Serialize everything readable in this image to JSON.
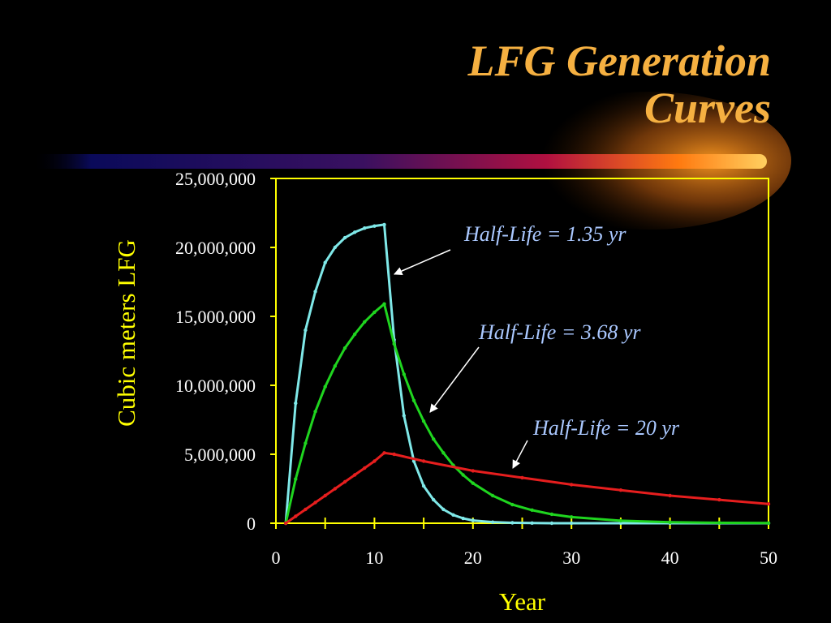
{
  "slide": {
    "title_line1": "LFG Generation",
    "title_line2": "Curves"
  },
  "colors": {
    "background": "#000000",
    "title": "#f5b041",
    "axes": "#ffff00",
    "tick_text": "#ffffff",
    "axis_title": "#ffff00",
    "annotation": "#aac8ff"
  },
  "chart_data": {
    "type": "line",
    "title": "",
    "xlabel": "Year",
    "ylabel": "Cubic meters LFG",
    "xlim": [
      0,
      50
    ],
    "ylim": [
      0,
      25000000
    ],
    "xticks": [
      0,
      10,
      20,
      30,
      40,
      50
    ],
    "xtick_labels": [
      "0",
      "10",
      "20",
      "30",
      "40",
      "50"
    ],
    "yticks": [
      0,
      5000000,
      10000000,
      15000000,
      20000000,
      25000000
    ],
    "ytick_labels": [
      "0",
      "5,000,000",
      "10,000,000",
      "15,000,000",
      "20,000,000",
      "25,000,000"
    ],
    "grid": false,
    "legend": "none",
    "series": [
      {
        "color": "#7fe8e8",
        "x": [
          1,
          2,
          3,
          4,
          5,
          6,
          7,
          8,
          9,
          10,
          11,
          12,
          13,
          14,
          15,
          16,
          17,
          18,
          19,
          20,
          22,
          24,
          26,
          28,
          30,
          35,
          40,
          45,
          50
        ],
        "y": [
          0,
          8700000,
          14000000,
          16800000,
          18900000,
          20000000,
          20700000,
          21100000,
          21400000,
          21550000,
          21650000,
          13300000,
          7800000,
          4500000,
          2700000,
          1700000,
          1000000,
          600000,
          350000,
          200000,
          80000,
          30000,
          10000,
          0,
          0,
          0,
          0,
          0,
          0
        ]
      },
      {
        "color": "#1fd51f",
        "x": [
          1,
          2,
          3,
          4,
          5,
          6,
          7,
          8,
          9,
          10,
          11,
          12,
          13,
          14,
          15,
          16,
          17,
          18,
          19,
          20,
          22,
          24,
          26,
          28,
          30,
          35,
          40,
          45,
          50
        ],
        "y": [
          0,
          3200000,
          5800000,
          8100000,
          9900000,
          11400000,
          12700000,
          13700000,
          14600000,
          15300000,
          15900000,
          13000000,
          10800000,
          8900000,
          7400000,
          6100000,
          5100000,
          4200000,
          3500000,
          2900000,
          2000000,
          1350000,
          950000,
          650000,
          450000,
          180000,
          70000,
          30000,
          10000
        ]
      },
      {
        "color": "#e61e1e",
        "x": [
          1,
          2,
          3,
          4,
          5,
          6,
          7,
          8,
          9,
          10,
          11,
          12,
          15,
          20,
          25,
          30,
          35,
          40,
          45,
          50
        ],
        "y": [
          0,
          500000,
          1000000,
          1500000,
          2000000,
          2500000,
          3000000,
          3500000,
          4000000,
          4500000,
          5100000,
          5000000,
          4500000,
          3800000,
          3300000,
          2800000,
          2400000,
          2000000,
          1700000,
          1400000
        ]
      }
    ],
    "annotations": [
      {
        "text": "Half-Life = 1.35 yr",
        "target_x": 12,
        "target_y": 18500000
      },
      {
        "text": "Half-Life = 3.68 yr",
        "target_x": 16,
        "target_y": 8000000
      },
      {
        "text": "Half-Life = 20 yr",
        "target_x": 24,
        "target_y": 4000000
      }
    ]
  }
}
